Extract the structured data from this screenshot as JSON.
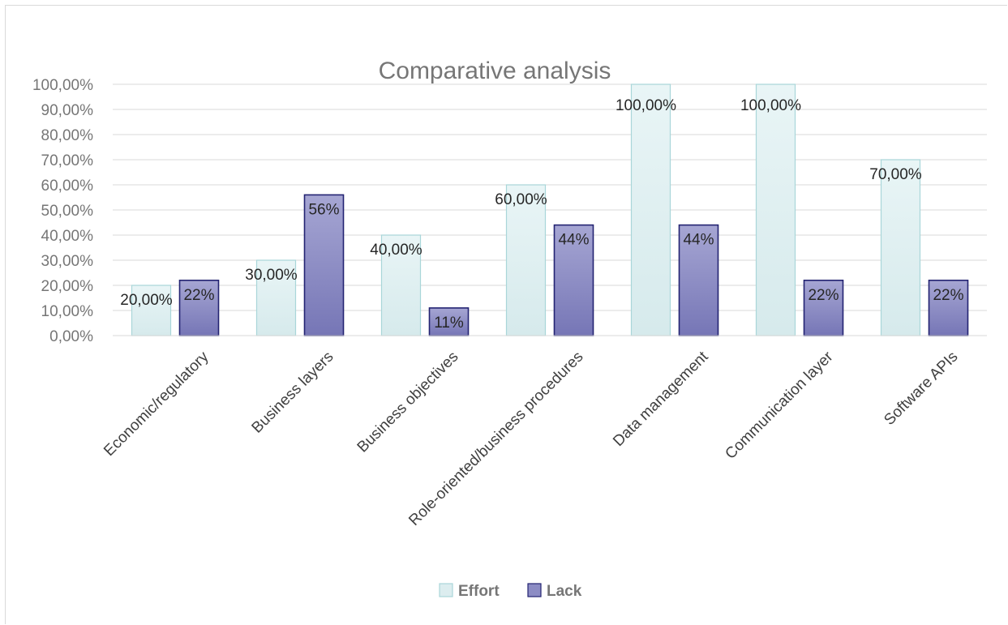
{
  "chart_data": {
    "type": "bar",
    "title": "Comparative analysis",
    "xlabel": "",
    "ylabel": "",
    "ylim": [
      0,
      1
    ],
    "y_ticks": [
      "0,00%",
      "10,00%",
      "20,00%",
      "30,00%",
      "40,00%",
      "50,00%",
      "60,00%",
      "70,00%",
      "80,00%",
      "90,00%",
      "100,00%"
    ],
    "categories": [
      "Economic/regulatory",
      "Business layers",
      "Business objectives",
      "Role-oriented/business procedures",
      "Data management",
      "Communication layer",
      "Software APIs"
    ],
    "series": [
      {
        "name": "Effort",
        "values": [
          0.2,
          0.3,
          0.4,
          0.6,
          1.0,
          1.0,
          0.7
        ],
        "labels": [
          "20,00%",
          "30,00%",
          "40,00%",
          "60,00%",
          "100,00%",
          "100,00%",
          "70,00%"
        ],
        "color": "#dcedef",
        "border": "#a9d6d9"
      },
      {
        "name": "Lack",
        "values": [
          0.22,
          0.56,
          0.11,
          0.44,
          0.44,
          0.22,
          0.22
        ],
        "labels": [
          "22%",
          "56%",
          "11%",
          "44%",
          "44%",
          "22%",
          "22%"
        ],
        "color": "#8c8cc4",
        "border": "#232372"
      }
    ],
    "grid": true,
    "legend": "bottom"
  }
}
